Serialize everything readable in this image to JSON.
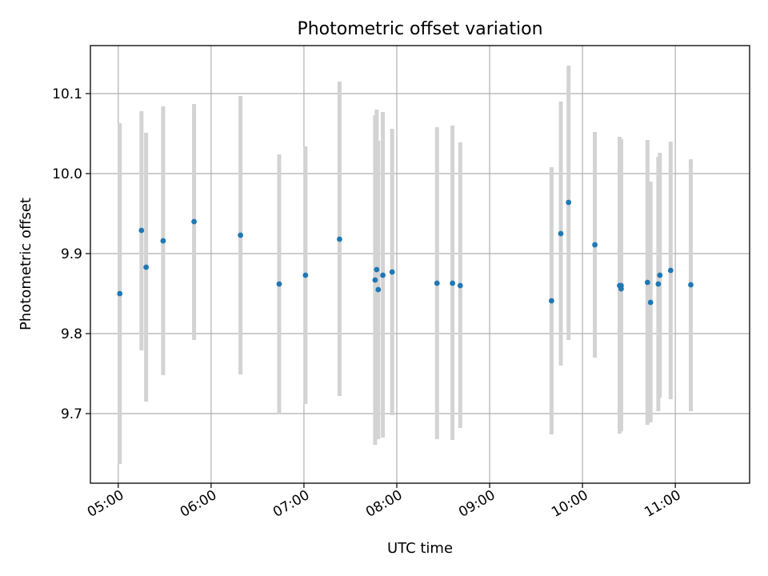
{
  "chart_data": {
    "type": "scatter",
    "title": "Photometric offset variation",
    "xlabel": "UTC time",
    "ylabel": "Photometric offset",
    "xlim": [
      "04:42",
      "11:48"
    ],
    "ylim": [
      9.613,
      10.16
    ],
    "grid": true,
    "x_ticks": [
      "05:00",
      "06:00",
      "07:00",
      "08:00",
      "09:00",
      "10:00",
      "11:00"
    ],
    "y_ticks": [
      "9.7",
      "9.8",
      "9.9",
      "10.0",
      "10.1"
    ],
    "colors": {
      "points": "#1f77b4",
      "errorbars": "#d3d3d3",
      "grid": "#b0b0b0"
    },
    "points": [
      {
        "time": "05:01",
        "y": 9.85,
        "err_low": 9.637,
        "err_high": 10.063
      },
      {
        "time": "05:15",
        "y": 9.929,
        "err_low": 9.779,
        "err_high": 10.078
      },
      {
        "time": "05:18",
        "y": 9.883,
        "err_low": 9.715,
        "err_high": 10.051
      },
      {
        "time": "05:29",
        "y": 9.916,
        "err_low": 9.748,
        "err_high": 10.084
      },
      {
        "time": "05:49",
        "y": 9.94,
        "err_low": 9.792,
        "err_high": 10.087
      },
      {
        "time": "06:19",
        "y": 9.923,
        "err_low": 9.749,
        "err_high": 10.097
      },
      {
        "time": "06:44",
        "y": 9.862,
        "err_low": 9.7,
        "err_high": 10.024
      },
      {
        "time": "07:01",
        "y": 9.873,
        "err_low": 9.712,
        "err_high": 10.034
      },
      {
        "time": "07:23",
        "y": 9.918,
        "err_low": 9.722,
        "err_high": 10.115
      },
      {
        "time": "07:46",
        "y": 9.867,
        "err_low": 9.661,
        "err_high": 10.073
      },
      {
        "time": "07:47",
        "y": 9.88,
        "err_low": 9.68,
        "err_high": 10.08
      },
      {
        "time": "07:48",
        "y": 9.855,
        "err_low": 9.668,
        "err_high": 10.041
      },
      {
        "time": "07:51",
        "y": 9.873,
        "err_low": 9.67,
        "err_high": 10.077
      },
      {
        "time": "07:57",
        "y": 9.877,
        "err_low": 9.698,
        "err_high": 10.056
      },
      {
        "time": "08:26",
        "y": 9.863,
        "err_low": 9.668,
        "err_high": 10.058
      },
      {
        "time": "08:36",
        "y": 9.863,
        "err_low": 9.667,
        "err_high": 10.06
      },
      {
        "time": "08:41",
        "y": 9.86,
        "err_low": 9.682,
        "err_high": 10.039
      },
      {
        "time": "09:40",
        "y": 9.841,
        "err_low": 9.674,
        "err_high": 10.008
      },
      {
        "time": "09:46",
        "y": 9.925,
        "err_low": 9.76,
        "err_high": 10.09
      },
      {
        "time": "09:51",
        "y": 9.964,
        "err_low": 9.792,
        "err_high": 10.135
      },
      {
        "time": "10:08",
        "y": 9.911,
        "err_low": 9.77,
        "err_high": 10.052
      },
      {
        "time": "10:24",
        "y": 9.86,
        "err_low": 9.675,
        "err_high": 10.046
      },
      {
        "time": "10:25",
        "y": 9.856,
        "err_low": 9.678,
        "err_high": 10.043
      },
      {
        "time": "10:25",
        "y": 9.86,
        "err_low": 9.68,
        "err_high": 10.04
      },
      {
        "time": "10:42",
        "y": 9.864,
        "err_low": 9.686,
        "err_high": 10.042
      },
      {
        "time": "10:44",
        "y": 9.839,
        "err_low": 9.689,
        "err_high": 9.99
      },
      {
        "time": "10:49",
        "y": 9.862,
        "err_low": 9.703,
        "err_high": 10.021
      },
      {
        "time": "10:50",
        "y": 9.873,
        "err_low": 9.72,
        "err_high": 10.026
      },
      {
        "time": "10:57",
        "y": 9.879,
        "err_low": 9.718,
        "err_high": 10.04
      },
      {
        "time": "11:10",
        "y": 9.861,
        "err_low": 9.703,
        "err_high": 10.018
      }
    ]
  }
}
